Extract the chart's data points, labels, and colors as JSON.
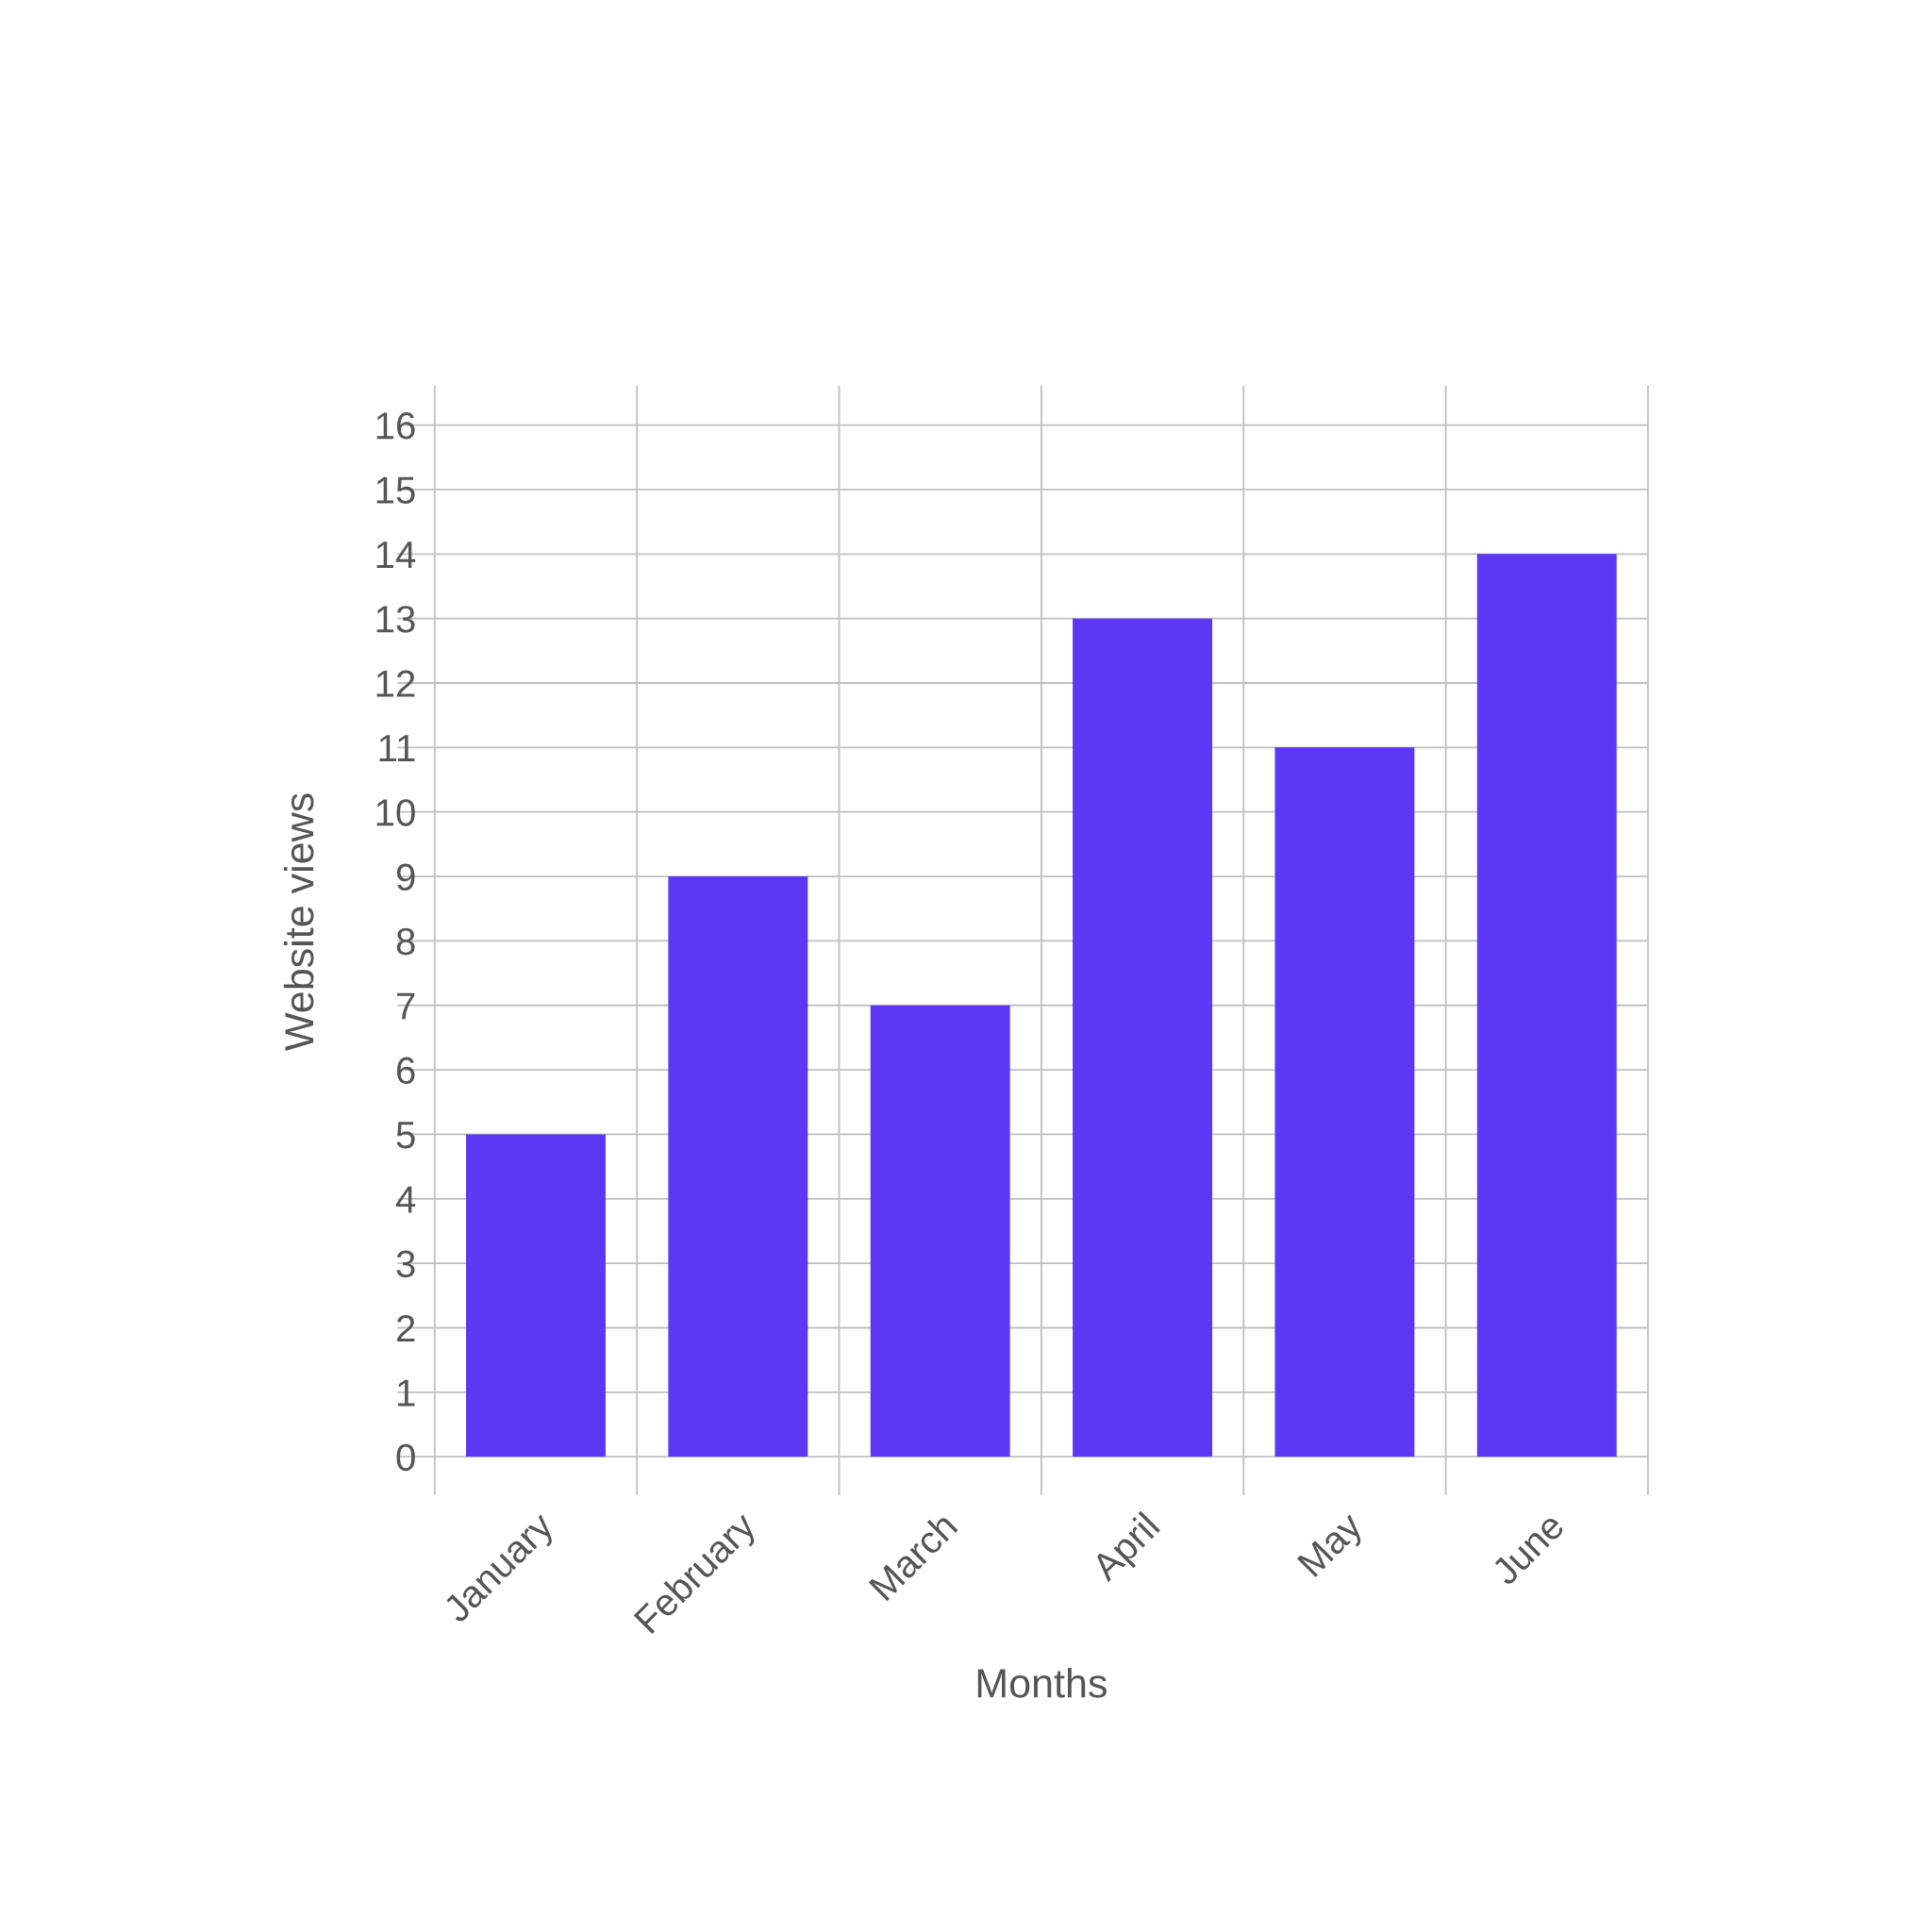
{
  "chart_data": {
    "type": "bar",
    "xlabel": "Months",
    "ylabel": "Website views",
    "categories": [
      "January",
      "February",
      "March",
      "April",
      "May",
      "June"
    ],
    "values": [
      5,
      9,
      7,
      13,
      11,
      14
    ],
    "color": "#5b38f4",
    "ylim": [
      0,
      16.6
    ],
    "yticks": [
      0,
      1,
      2,
      3,
      4,
      5,
      6,
      7,
      8,
      9,
      10,
      11,
      12,
      13,
      14,
      15,
      16
    ],
    "grid": true
  }
}
